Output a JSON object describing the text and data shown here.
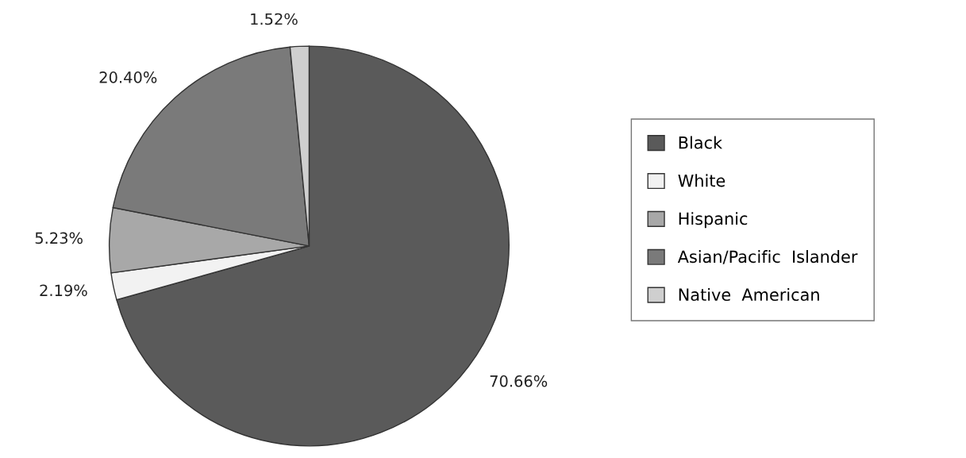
{
  "chart_data": {
    "type": "pie",
    "categories": [
      "Black",
      "White",
      "Hispanic",
      "Asian/Pacific  Islander",
      "Native  American"
    ],
    "values": [
      70.66,
      2.19,
      5.23,
      20.4,
      1.52
    ],
    "colors": [
      "#5a5a5a",
      "#f2f2f2",
      "#a8a8a8",
      "#7a7a7a",
      "#cfcfcf"
    ],
    "value_labels": [
      "70.66%",
      "2.19%",
      "5.23%",
      "20.40%",
      "1.52%"
    ],
    "legend": "right"
  }
}
